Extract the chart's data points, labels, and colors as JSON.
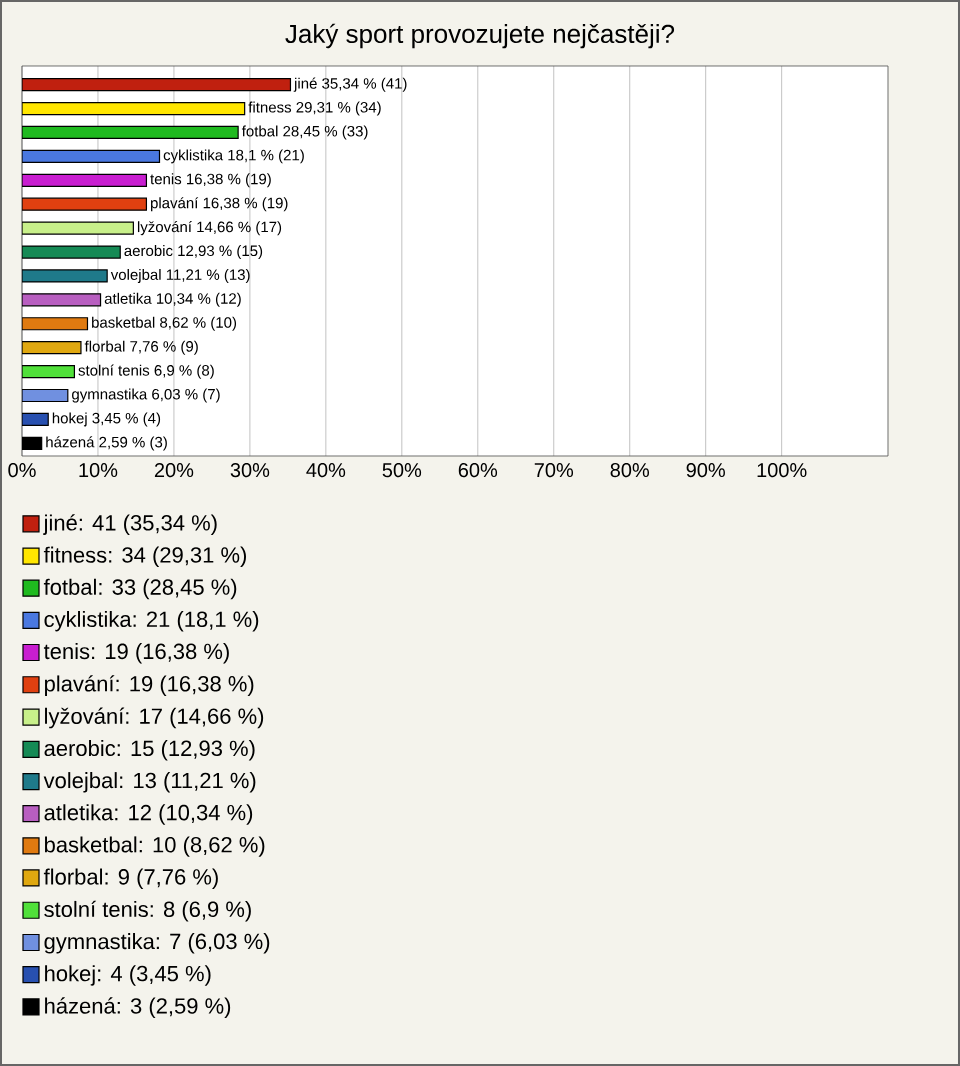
{
  "chart_data": {
    "type": "bar",
    "orientation": "horizontal",
    "title": "Jaký sport provozujete nejčastěji?",
    "categories": [
      null,
      null,
      null,
      null,
      null,
      null,
      null,
      null,
      null,
      null,
      null,
      null,
      null,
      null,
      null,
      null
    ],
    "xlim": [
      0,
      114
    ],
    "xticks": [
      {
        "value": 0,
        "label": "0%"
      },
      {
        "value": 10,
        "label": "10%"
      },
      {
        "value": 20,
        "label": "20%"
      },
      {
        "value": 30,
        "label": "30%"
      },
      {
        "value": 40,
        "label": "40%"
      },
      {
        "value": 50,
        "label": "50%"
      },
      {
        "value": 60,
        "label": "60%"
      },
      {
        "value": 70,
        "label": "70%"
      },
      {
        "value": 80,
        "label": "80%"
      },
      {
        "value": 90,
        "label": "90%"
      },
      {
        "value": 100,
        "label": "100%"
      }
    ],
    "grid": "x",
    "legend": "bottom",
    "series": [
      {
        "name": "jiné: 41 (35,34 %)",
        "color": "#c0200f",
        "values": [
          35.34,
          null,
          null,
          null,
          null,
          null,
          null,
          null,
          null,
          null,
          null,
          null,
          null,
          null,
          null,
          null
        ],
        "value_labels": [
          "jiné 35,34 % (41)",
          null,
          null,
          null,
          null,
          null,
          null,
          null,
          null,
          null,
          null,
          null,
          null,
          null,
          null,
          null
        ]
      },
      {
        "name": "fitness: 34 (29,31 %)",
        "color": "#ffe600",
        "values": [
          null,
          29.31,
          null,
          null,
          null,
          null,
          null,
          null,
          null,
          null,
          null,
          null,
          null,
          null,
          null,
          null
        ],
        "value_labels": [
          null,
          "fitness 29,31 % (34)",
          null,
          null,
          null,
          null,
          null,
          null,
          null,
          null,
          null,
          null,
          null,
          null,
          null,
          null
        ]
      },
      {
        "name": "fotbal: 33 (28,45 %)",
        "color": "#1fba1f",
        "values": [
          null,
          null,
          28.45,
          null,
          null,
          null,
          null,
          null,
          null,
          null,
          null,
          null,
          null,
          null,
          null,
          null
        ],
        "value_labels": [
          null,
          null,
          "fotbal 28,45 % (33)",
          null,
          null,
          null,
          null,
          null,
          null,
          null,
          null,
          null,
          null,
          null,
          null,
          null
        ]
      },
      {
        "name": "cyklistika: 21 (18,1 %)",
        "color": "#4a78e0",
        "values": [
          null,
          null,
          null,
          18.1,
          null,
          null,
          null,
          null,
          null,
          null,
          null,
          null,
          null,
          null,
          null,
          null
        ],
        "value_labels": [
          null,
          null,
          null,
          "cyklistika 18,1 % (21)",
          null,
          null,
          null,
          null,
          null,
          null,
          null,
          null,
          null,
          null,
          null,
          null
        ]
      },
      {
        "name": "tenis: 19 (16,38 %)",
        "color": "#c81ed0",
        "values": [
          null,
          null,
          null,
          null,
          16.38,
          null,
          null,
          null,
          null,
          null,
          null,
          null,
          null,
          null,
          null,
          null
        ],
        "value_labels": [
          null,
          null,
          null,
          null,
          "tenis 16,38 % (19)",
          null,
          null,
          null,
          null,
          null,
          null,
          null,
          null,
          null,
          null,
          null
        ]
      },
      {
        "name": "plavání: 19 (16,38 %)",
        "color": "#e04010",
        "values": [
          null,
          null,
          null,
          null,
          null,
          16.38,
          null,
          null,
          null,
          null,
          null,
          null,
          null,
          null,
          null,
          null
        ],
        "value_labels": [
          null,
          null,
          null,
          null,
          null,
          "plavání 16,38 % (19)",
          null,
          null,
          null,
          null,
          null,
          null,
          null,
          null,
          null,
          null
        ]
      },
      {
        "name": "lyžování: 17 (14,66 %)",
        "color": "#c8f08a",
        "values": [
          null,
          null,
          null,
          null,
          null,
          null,
          14.66,
          null,
          null,
          null,
          null,
          null,
          null,
          null,
          null,
          null
        ],
        "value_labels": [
          null,
          null,
          null,
          null,
          null,
          null,
          "lyžování 14,66 % (17)",
          null,
          null,
          null,
          null,
          null,
          null,
          null,
          null,
          null
        ]
      },
      {
        "name": "aerobic: 15 (12,93 %)",
        "color": "#158a55",
        "values": [
          null,
          null,
          null,
          null,
          null,
          null,
          null,
          12.93,
          null,
          null,
          null,
          null,
          null,
          null,
          null,
          null
        ],
        "value_labels": [
          null,
          null,
          null,
          null,
          null,
          null,
          null,
          "aerobic 12,93 % (15)",
          null,
          null,
          null,
          null,
          null,
          null,
          null,
          null
        ]
      },
      {
        "name": "volejbal: 13 (11,21 %)",
        "color": "#1f7a8a",
        "values": [
          null,
          null,
          null,
          null,
          null,
          null,
          null,
          null,
          11.21,
          null,
          null,
          null,
          null,
          null,
          null,
          null
        ],
        "value_labels": [
          null,
          null,
          null,
          null,
          null,
          null,
          null,
          null,
          "volejbal 11,21 % (13)",
          null,
          null,
          null,
          null,
          null,
          null,
          null
        ]
      },
      {
        "name": "atletika: 12 (10,34 %)",
        "color": "#b85ec0",
        "values": [
          null,
          null,
          null,
          null,
          null,
          null,
          null,
          null,
          null,
          10.34,
          null,
          null,
          null,
          null,
          null,
          null
        ],
        "value_labels": [
          null,
          null,
          null,
          null,
          null,
          null,
          null,
          null,
          null,
          "atletika 10,34 % (12)",
          null,
          null,
          null,
          null,
          null,
          null
        ]
      },
      {
        "name": "basketbal: 10 (8,62 %)",
        "color": "#e07a10",
        "values": [
          null,
          null,
          null,
          null,
          null,
          null,
          null,
          null,
          null,
          null,
          8.62,
          null,
          null,
          null,
          null,
          null
        ],
        "value_labels": [
          null,
          null,
          null,
          null,
          null,
          null,
          null,
          null,
          null,
          null,
          "basketbal 8,62 % (10)",
          null,
          null,
          null,
          null,
          null
        ]
      },
      {
        "name": "florbal: 9 (7,76 %)",
        "color": "#e0a810",
        "values": [
          null,
          null,
          null,
          null,
          null,
          null,
          null,
          null,
          null,
          null,
          null,
          7.76,
          null,
          null,
          null,
          null
        ],
        "value_labels": [
          null,
          null,
          null,
          null,
          null,
          null,
          null,
          null,
          null,
          null,
          null,
          "florbal 7,76 % (9)",
          null,
          null,
          null,
          null
        ]
      },
      {
        "name": "stolní tenis: 8 (6,9 %)",
        "color": "#50e03a",
        "values": [
          null,
          null,
          null,
          null,
          null,
          null,
          null,
          null,
          null,
          null,
          null,
          null,
          6.9,
          null,
          null,
          null
        ],
        "value_labels": [
          null,
          null,
          null,
          null,
          null,
          null,
          null,
          null,
          null,
          null,
          null,
          null,
          "stolní tenis 6,9 % (8)",
          null,
          null,
          null
        ]
      },
      {
        "name": "gymnastika: 7 (6,03 %)",
        "color": "#7090e0",
        "values": [
          null,
          null,
          null,
          null,
          null,
          null,
          null,
          null,
          null,
          null,
          null,
          null,
          null,
          6.03,
          null,
          null
        ],
        "value_labels": [
          null,
          null,
          null,
          null,
          null,
          null,
          null,
          null,
          null,
          null,
          null,
          null,
          null,
          "gymnastika 6,03 % (7)",
          null,
          null
        ]
      },
      {
        "name": "hokej: 4 (3,45 %)",
        "color": "#2850b0",
        "values": [
          null,
          null,
          null,
          null,
          null,
          null,
          null,
          null,
          null,
          null,
          null,
          null,
          null,
          null,
          3.45,
          null
        ],
        "value_labels": [
          null,
          null,
          null,
          null,
          null,
          null,
          null,
          null,
          null,
          null,
          null,
          null,
          null,
          null,
          "hokej 3,45 % (4)",
          null
        ]
      },
      {
        "name": "házená: 3 (2,59 %)",
        "color": "#000000",
        "values": [
          null,
          null,
          null,
          null,
          null,
          null,
          null,
          null,
          null,
          null,
          null,
          null,
          null,
          null,
          null,
          2.59
        ],
        "value_labels": [
          null,
          null,
          null,
          null,
          null,
          null,
          null,
          null,
          null,
          null,
          null,
          null,
          null,
          null,
          null,
          "házená 2,59 % (3)"
        ]
      }
    ]
  }
}
